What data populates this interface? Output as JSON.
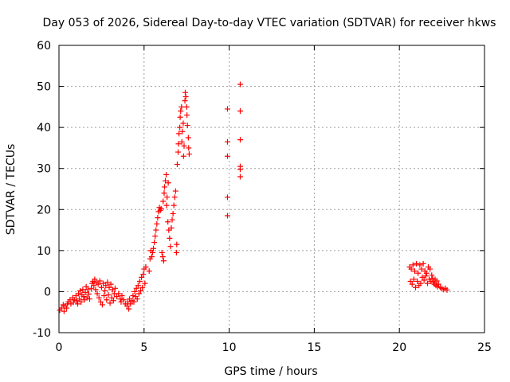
{
  "chart_data": {
    "type": "scatter",
    "title": "Day 053 of 2026, Sidereal Day-to-day VTEC variation (SDTVAR) for receiver hkws",
    "xlabel": "GPS time / hours",
    "ylabel": "SDTVAR / TECUs",
    "xlim": [
      0,
      25
    ],
    "ylim": [
      -10,
      60
    ],
    "xticks": [
      0,
      5,
      10,
      15,
      20,
      25
    ],
    "yticks": [
      -10,
      0,
      10,
      20,
      30,
      40,
      50,
      60
    ],
    "grid": true,
    "marker": "+",
    "color": "#ff0000",
    "series": [
      {
        "name": "SDTVAR",
        "points": [
          [
            0.05,
            -4.5
          ],
          [
            0.15,
            -4.0
          ],
          [
            0.25,
            -3.2
          ],
          [
            0.3,
            -4.8
          ],
          [
            0.35,
            -3.5
          ],
          [
            0.45,
            -4.0
          ],
          [
            0.5,
            -3.0
          ],
          [
            0.55,
            -2.5
          ],
          [
            0.65,
            -2.0
          ],
          [
            0.7,
            -3.0
          ],
          [
            0.8,
            -1.5
          ],
          [
            0.85,
            -2.6
          ],
          [
            0.9,
            -2.0
          ],
          [
            1.0,
            -1.0
          ],
          [
            1.05,
            -2.2
          ],
          [
            1.1,
            -3.0
          ],
          [
            1.15,
            -0.5
          ],
          [
            1.2,
            -1.8
          ],
          [
            1.25,
            0.2
          ],
          [
            1.3,
            -2.5
          ],
          [
            1.35,
            -0.8
          ],
          [
            1.4,
            0.5
          ],
          [
            1.45,
            -1.2
          ],
          [
            1.5,
            -2.0
          ],
          [
            1.55,
            -0.2
          ],
          [
            1.6,
            1.2
          ],
          [
            1.65,
            -1.5
          ],
          [
            1.7,
            0.5
          ],
          [
            1.75,
            -0.6
          ],
          [
            1.8,
            -1.8
          ],
          [
            1.9,
            0.8
          ],
          [
            1.95,
            2.0
          ],
          [
            2.0,
            2.5
          ],
          [
            2.05,
            1.5
          ],
          [
            2.1,
            3.0
          ],
          [
            2.15,
            0.5
          ],
          [
            2.2,
            2.2
          ],
          [
            2.25,
            -0.5
          ],
          [
            2.3,
            1.8
          ],
          [
            2.35,
            -1.5
          ],
          [
            2.4,
            2.6
          ],
          [
            2.45,
            -2.5
          ],
          [
            2.5,
            1.0
          ],
          [
            2.55,
            -3.2
          ],
          [
            2.6,
            2.0
          ],
          [
            2.65,
            -1.0
          ],
          [
            2.7,
            0.2
          ],
          [
            2.75,
            1.5
          ],
          [
            2.8,
            -2.0
          ],
          [
            2.85,
            2.3
          ],
          [
            2.9,
            -0.8
          ],
          [
            2.95,
            1.0
          ],
          [
            3.0,
            -2.8
          ],
          [
            3.05,
            1.8
          ],
          [
            3.1,
            -1.5
          ],
          [
            3.15,
            0.5
          ],
          [
            3.2,
            -2.2
          ],
          [
            3.25,
            -0.5
          ],
          [
            3.3,
            0.8
          ],
          [
            3.4,
            -1.2
          ],
          [
            3.5,
            -0.5
          ],
          [
            3.6,
            -1.8
          ],
          [
            3.65,
            -2.5
          ],
          [
            3.7,
            -1.0
          ],
          [
            3.8,
            -2.0
          ],
          [
            3.9,
            -3.0
          ],
          [
            4.0,
            -3.5
          ],
          [
            4.05,
            -2.5
          ],
          [
            4.1,
            -4.2
          ],
          [
            4.15,
            -1.8
          ],
          [
            4.2,
            -3.0
          ],
          [
            4.3,
            -2.2
          ],
          [
            4.35,
            -1.0
          ],
          [
            4.4,
            -2.5
          ],
          [
            4.45,
            0.0
          ],
          [
            4.5,
            -1.2
          ],
          [
            4.55,
            0.8
          ],
          [
            4.6,
            -1.8
          ],
          [
            4.65,
            1.5
          ],
          [
            4.7,
            -0.5
          ],
          [
            4.75,
            2.5
          ],
          [
            4.8,
            0.2
          ],
          [
            4.85,
            3.5
          ],
          [
            4.9,
            1.0
          ],
          [
            4.95,
            4.2
          ],
          [
            5.0,
            5.5
          ],
          [
            5.05,
            2.0
          ],
          [
            5.1,
            6.0
          ],
          [
            5.3,
            5.0
          ],
          [
            5.35,
            8.0
          ],
          [
            5.4,
            10.0
          ],
          [
            5.45,
            8.5
          ],
          [
            5.5,
            9.5
          ],
          [
            5.55,
            10.5
          ],
          [
            5.6,
            12.0
          ],
          [
            5.65,
            13.5
          ],
          [
            5.7,
            15.0
          ],
          [
            5.75,
            16.5
          ],
          [
            5.8,
            18.0
          ],
          [
            5.85,
            19.5
          ],
          [
            5.9,
            20.5
          ],
          [
            5.95,
            19.8
          ],
          [
            6.0,
            20.2
          ],
          [
            6.05,
            9.5
          ],
          [
            6.1,
            8.5
          ],
          [
            6.12,
            22.0
          ],
          [
            6.15,
            7.5
          ],
          [
            6.18,
            24.0
          ],
          [
            6.2,
            25.5
          ],
          [
            6.25,
            27.0
          ],
          [
            6.3,
            28.5
          ],
          [
            6.32,
            21.0
          ],
          [
            6.35,
            23.0
          ],
          [
            6.4,
            17.0
          ],
          [
            6.42,
            26.5
          ],
          [
            6.45,
            15.0
          ],
          [
            6.5,
            13.0
          ],
          [
            6.55,
            11.0
          ],
          [
            6.6,
            15.5
          ],
          [
            6.65,
            17.5
          ],
          [
            6.7,
            19.0
          ],
          [
            6.75,
            21.0
          ],
          [
            6.8,
            23.0
          ],
          [
            6.85,
            24.5
          ],
          [
            6.9,
            9.5
          ],
          [
            6.92,
            11.5
          ],
          [
            6.95,
            31.0
          ],
          [
            7.0,
            34.0
          ],
          [
            7.02,
            36.0
          ],
          [
            7.05,
            38.5
          ],
          [
            7.1,
            40.0
          ],
          [
            7.12,
            42.5
          ],
          [
            7.15,
            44.0
          ],
          [
            7.2,
            45.0
          ],
          [
            7.22,
            36.5
          ],
          [
            7.25,
            39.0
          ],
          [
            7.3,
            41.0
          ],
          [
            7.32,
            33.0
          ],
          [
            7.35,
            35.5
          ],
          [
            7.4,
            46.5
          ],
          [
            7.42,
            48.5
          ],
          [
            7.45,
            47.5
          ],
          [
            7.5,
            45.0
          ],
          [
            7.52,
            43.0
          ],
          [
            7.55,
            40.5
          ],
          [
            7.6,
            37.5
          ],
          [
            7.62,
            35.0
          ],
          [
            7.65,
            33.5
          ],
          [
            9.9,
            44.5
          ],
          [
            9.9,
            36.5
          ],
          [
            9.9,
            33.0
          ],
          [
            9.9,
            23.0
          ],
          [
            9.9,
            18.5
          ],
          [
            10.65,
            50.5
          ],
          [
            10.65,
            44.0
          ],
          [
            10.65,
            37.0
          ],
          [
            10.65,
            30.5
          ],
          [
            10.65,
            29.8
          ],
          [
            10.65,
            28.0
          ],
          [
            20.6,
            6.0
          ],
          [
            20.65,
            2.5
          ],
          [
            20.7,
            5.5
          ],
          [
            20.75,
            1.8
          ],
          [
            20.8,
            6.5
          ],
          [
            20.85,
            3.0
          ],
          [
            20.9,
            5.0
          ],
          [
            20.95,
            1.0
          ],
          [
            21.0,
            6.8
          ],
          [
            21.05,
            2.5
          ],
          [
            21.1,
            4.5
          ],
          [
            21.15,
            1.5
          ],
          [
            21.2,
            6.5
          ],
          [
            21.25,
            2.0
          ],
          [
            21.3,
            5.5
          ],
          [
            21.35,
            3.5
          ],
          [
            21.4,
            6.8
          ],
          [
            21.45,
            2.8
          ],
          [
            21.5,
            5.0
          ],
          [
            21.55,
            3.8
          ],
          [
            21.6,
            4.5
          ],
          [
            21.65,
            2.0
          ],
          [
            21.7,
            6.0
          ],
          [
            21.75,
            3.0
          ],
          [
            21.8,
            5.5
          ],
          [
            21.85,
            2.5
          ],
          [
            21.9,
            4.0
          ],
          [
            21.95,
            3.2
          ],
          [
            22.0,
            2.2
          ],
          [
            22.05,
            1.8
          ],
          [
            22.1,
            3.0
          ],
          [
            22.15,
            1.5
          ],
          [
            22.2,
            2.6
          ],
          [
            22.25,
            1.2
          ],
          [
            22.3,
            1.8
          ],
          [
            22.4,
            1.0
          ],
          [
            22.5,
            0.8
          ],
          [
            22.6,
            0.5
          ],
          [
            22.7,
            0.8
          ],
          [
            22.8,
            0.4
          ]
        ]
      }
    ]
  }
}
